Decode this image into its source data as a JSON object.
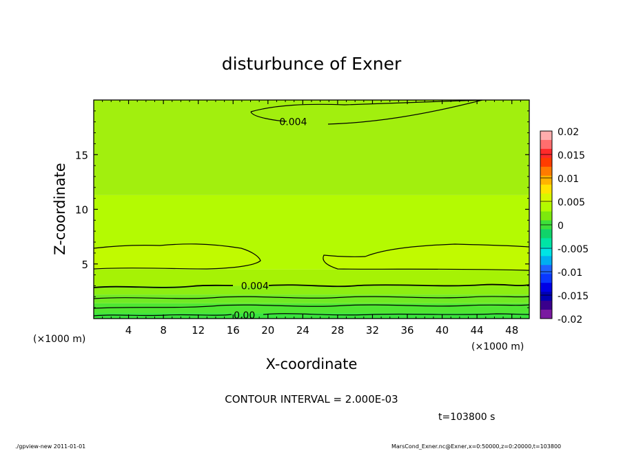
{
  "chart_data": {
    "type": "contour",
    "title": "disturbunce of Exner",
    "xlabel": "X-coordinate",
    "ylabel": "Z-coordinate",
    "x_unit": "(×1000 m)",
    "y_unit": "(×1000 m)",
    "xlim": [
      0,
      50
    ],
    "ylim": [
      0,
      20
    ],
    "x_ticks": [
      4,
      8,
      12,
      16,
      20,
      24,
      28,
      32,
      36,
      40,
      44,
      48
    ],
    "y_ticks": [
      5,
      10,
      15
    ],
    "contour_interval_label": "CONTOUR INTERVAL = 2.000E-03",
    "time_label": "t=103800 s",
    "contour_labels": [
      {
        "text": "0.004",
        "x": 22.9,
        "z": 18.0
      },
      {
        "text": "0.004",
        "x": 18.5,
        "z": 3.0
      },
      {
        "text": "0.00",
        "x": 17.3,
        "z": 0.3
      }
    ],
    "fill_bands": [
      {
        "z_range": [
          0.0,
          0.5
        ],
        "value": 0.0008,
        "color": "#39e33d"
      },
      {
        "z_range": [
          0.5,
          1.4
        ],
        "value": 0.0015,
        "color": "#4fe632"
      },
      {
        "z_range": [
          1.4,
          2.2
        ],
        "value": 0.0025,
        "color": "#70ea24"
      },
      {
        "z_range": [
          2.2,
          3.0
        ],
        "value": 0.0035,
        "color": "#8cee12"
      },
      {
        "z_range": [
          3.0,
          4.5
        ],
        "value": 0.0045,
        "color": "#a6f205"
      },
      {
        "z_range": [
          4.5,
          11.3
        ],
        "value": 0.0052,
        "color": "#b4fa02"
      },
      {
        "z_range": [
          11.3,
          20.0
        ],
        "value": 0.0046,
        "color": "#a2ef0e"
      }
    ],
    "colorbar": {
      "labels": [
        "0.02",
        "0.015",
        "0.01",
        "0.005",
        "0",
        "-0.005",
        "-0.01",
        "-0.015",
        "-0.02"
      ],
      "colors": [
        "#ffadad",
        "#ff6e6e",
        "#ff2a2a",
        "#ff3c00",
        "#ff7b00",
        "#ffb300",
        "#ffe300",
        "#d8f700",
        "#b3fa00",
        "#7de80d",
        "#3de03a",
        "#10d36a",
        "#00e5a5",
        "#00e4e4",
        "#00aff0",
        "#1e64ff",
        "#0a37ff",
        "#0000e6",
        "#0000b4",
        "#3a008c",
        "#7a1aa0"
      ]
    }
  },
  "footer": {
    "left": "./gpview-new   2011-01-01",
    "right": "MarsCond_Exner.nc@Exner,x=0:50000,z=0:20000,t=103800"
  }
}
